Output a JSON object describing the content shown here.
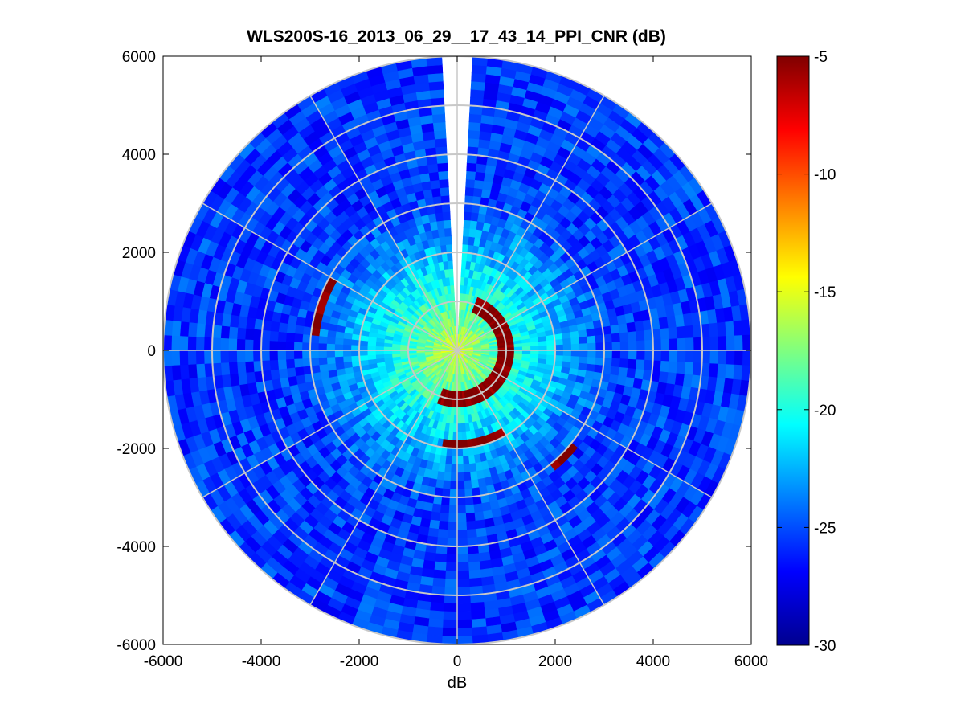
{
  "chart_data": {
    "type": "heatmap",
    "subtype": "polar-ppi",
    "title": "WLS200S-16_2013_06_29__17_43_14_PPI_CNR (dB)",
    "xlabel": "dB",
    "ylabel": "",
    "xlim": [
      -6000,
      6000
    ],
    "ylim": [
      -6000,
      6000
    ],
    "xticks": [
      -6000,
      -4000,
      -2000,
      0,
      2000,
      4000,
      6000
    ],
    "yticks": [
      6000,
      4000,
      2000,
      0,
      -2000,
      -4000,
      -6000
    ],
    "xtick_labels": [
      "-6000",
      "-4000",
      "-2000",
      "0",
      "2000",
      "4000",
      "6000"
    ],
    "ytick_labels": [
      "6000",
      "4000",
      "2000",
      "0",
      "-2000",
      "-4000",
      "-6000"
    ],
    "max_range": 6000,
    "range_rings": [
      1000,
      2000,
      3000,
      4000,
      5000,
      6000
    ],
    "spokes_deg": [
      0,
      30,
      60,
      90,
      120,
      150,
      180,
      210,
      240,
      270,
      300,
      330
    ],
    "missing_sector_deg": [
      -4,
      4
    ],
    "colorbar": {
      "min": -30,
      "max": -5,
      "colormap": "jet",
      "ticks": [
        -5,
        -10,
        -15,
        -20,
        -25,
        -30
      ],
      "tick_labels": [
        "-5",
        "-10",
        "-15",
        "-20",
        "-25",
        "-30"
      ]
    },
    "field_description": {
      "near_value_db": -15,
      "far_value_db": -25.5,
      "strong_return_db": -5,
      "strong_returns": [
        {
          "range_m": 1000,
          "az_from_deg": 20,
          "az_to_deg": 200
        },
        {
          "range_m": 1900,
          "az_from_deg": 150,
          "az_to_deg": 190
        },
        {
          "range_m": 3100,
          "az_from_deg": 130,
          "az_to_deg": 140
        },
        {
          "range_m": 2900,
          "az_from_deg": 275,
          "az_to_deg": 300
        }
      ]
    }
  }
}
